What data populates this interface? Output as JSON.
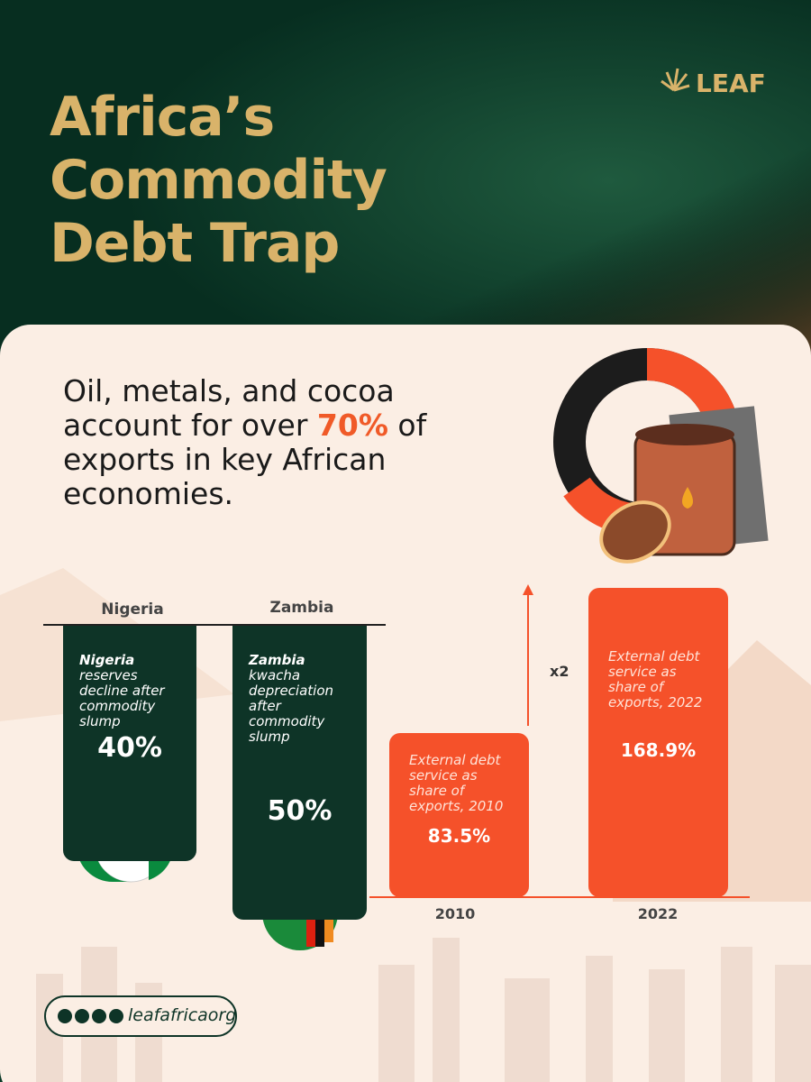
{
  "brand": "LEAF",
  "title": [
    "Africa’s",
    "Commodity",
    "Debt Trap"
  ],
  "headline": {
    "before": "Oil, metals, and cocoa account for over ",
    "highlight": "70%",
    "after": " of exports in key African economies."
  },
  "countries": [
    {
      "name": "Nigeria",
      "card_bold": "Nigeria",
      "card_text": " reserves decline after commodity slump",
      "value": "40%"
    },
    {
      "name": "Zambia",
      "card_bold": "Zambia",
      "card_text": " kwacha depreciation after commodity slump",
      "value": "50%"
    }
  ],
  "debt_service": {
    "multiplier": "x2",
    "bars": [
      {
        "year": "2010",
        "label": "External debt service as share of exports, 2010",
        "value": "83.5%"
      },
      {
        "year": "2022",
        "label": "External debt service as share of exports, 2022",
        "value": "168.9%"
      }
    ]
  },
  "social": "leafafricaorg"
}
